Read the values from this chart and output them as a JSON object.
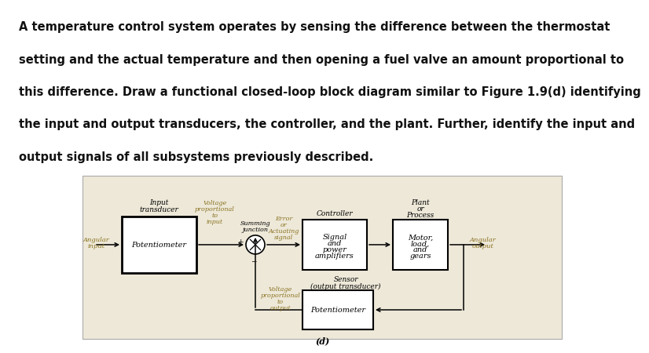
{
  "bg_color": "#ede8d8",
  "outer_bg": "#ffffff",
  "text_color_black": "#111111",
  "text_color_gold": "#8B7322",
  "header_text_lines": [
    "A temperature control system operates by sensing the difference between the thermostat",
    "setting and the actual temperature and then opening a fuel valve an amount proportional to",
    "this difference. Draw a functional closed-loop block diagram similar to Figure 1.9(d) identifying",
    "the input and output transducers, the controller, and the plant. Further, identify the input and",
    "output signals of all subsystems previously described."
  ],
  "figure_label": "(d)"
}
